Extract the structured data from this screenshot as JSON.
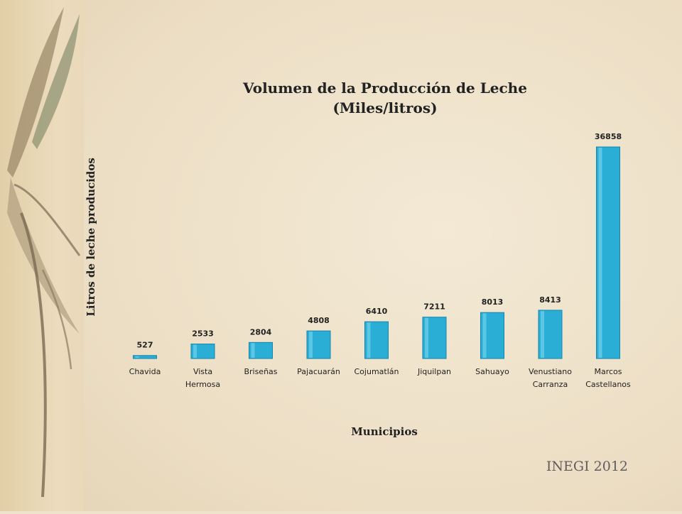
{
  "source_label": "INEGI 2012",
  "colors": {
    "bar": "#2aaed6",
    "bar_dark": "#1685ad",
    "bar_light": "#7fd6ef",
    "leaf": "#8d7a62"
  },
  "chart_data": {
    "type": "bar",
    "title_lines": [
      "Volumen de la Producción de Leche",
      "(Miles/litros)"
    ],
    "xlabel": "Municipios",
    "ylabel": "Litros de leche producidos",
    "categories": [
      [
        "Chavida"
      ],
      [
        "Vista",
        "Hermosa"
      ],
      [
        "Briseñas"
      ],
      [
        "Pajacuarán"
      ],
      [
        "Cojumatlán"
      ],
      [
        "Jiquilpan"
      ],
      [
        "Sahuayo"
      ],
      [
        "Venustiano",
        "Carranza"
      ],
      [
        "Marcos",
        "Castellanos"
      ]
    ],
    "values": [
      527,
      2533,
      2804,
      4808,
      6410,
      7211,
      8013,
      8413,
      36858
    ],
    "ylim": [
      0,
      36858
    ],
    "grid": false,
    "legend": "none"
  }
}
